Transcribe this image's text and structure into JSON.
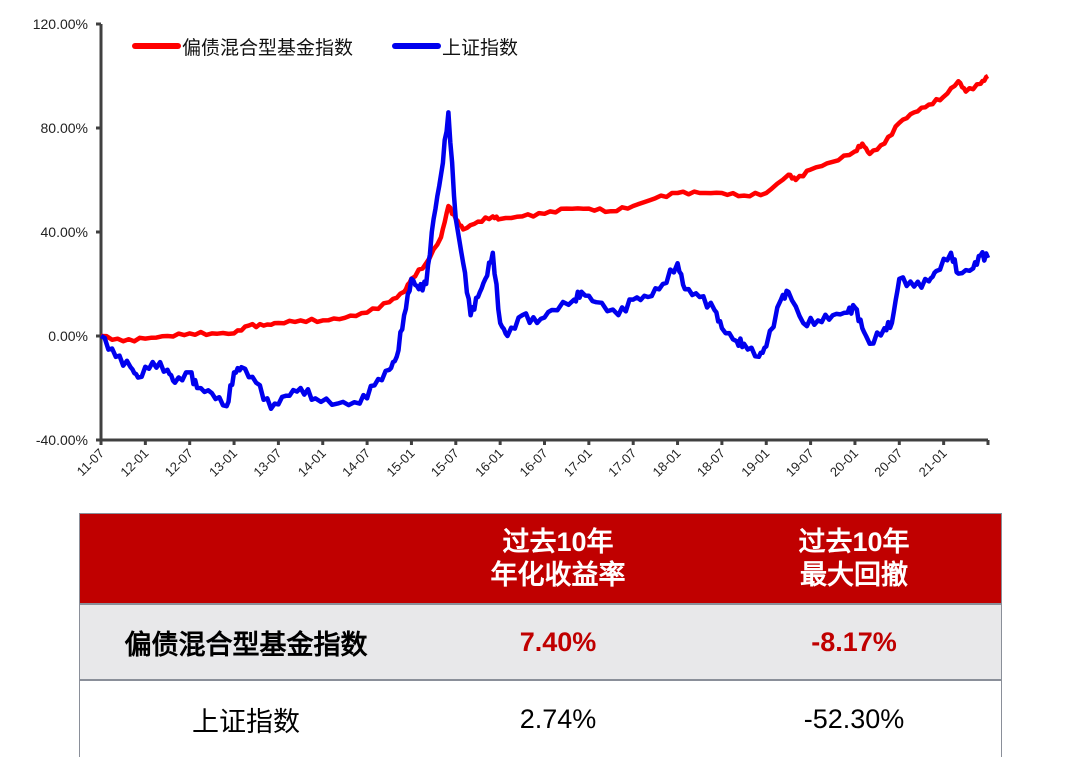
{
  "chart_data": {
    "type": "line",
    "ylim": [
      -40,
      120
    ],
    "yticks": [
      "120.00%",
      "80.00%",
      "40.00%",
      "0.00%",
      "-40.00%"
    ],
    "ytick_values": [
      120,
      80,
      40,
      0,
      -40
    ],
    "xlim": [
      "2011-07",
      "2021-07"
    ],
    "xtick_labels": [
      "11-07",
      "12-01",
      "12-07",
      "13-01",
      "13-07",
      "14-01",
      "14-07",
      "15-01",
      "15-07",
      "16-01",
      "16-07",
      "17-01",
      "17-07",
      "18-01",
      "18-07",
      "19-01",
      "19-07",
      "20-01",
      "20-07",
      "21-01"
    ],
    "legend_position": "top-left",
    "grid": false,
    "series": [
      {
        "name": "偏债混合型基金指数",
        "color": "#ff0000",
        "points": [
          [
            "2011-07",
            0
          ],
          [
            "2011-10",
            -2
          ],
          [
            "2012-01",
            -1
          ],
          [
            "2012-04",
            0
          ],
          [
            "2012-07",
            1
          ],
          [
            "2012-10",
            1
          ],
          [
            "2013-01",
            1
          ],
          [
            "2013-03",
            4
          ],
          [
            "2013-05",
            4
          ],
          [
            "2013-07",
            5
          ],
          [
            "2013-10",
            6
          ],
          [
            "2014-01",
            6
          ],
          [
            "2014-04",
            7
          ],
          [
            "2014-07",
            9
          ],
          [
            "2014-10",
            13
          ],
          [
            "2014-12",
            17
          ],
          [
            "2015-01",
            22
          ],
          [
            "2015-03",
            28
          ],
          [
            "2015-05",
            38
          ],
          [
            "2015-06",
            50
          ],
          [
            "2015-07",
            45
          ],
          [
            "2015-08",
            41
          ],
          [
            "2015-10",
            44
          ],
          [
            "2015-12",
            46
          ],
          [
            "2016-01",
            45
          ],
          [
            "2016-04",
            46
          ],
          [
            "2016-07",
            47
          ],
          [
            "2016-10",
            49
          ],
          [
            "2017-01",
            49
          ],
          [
            "2017-04",
            48
          ],
          [
            "2017-07",
            50
          ],
          [
            "2017-10",
            53
          ],
          [
            "2018-01",
            55
          ],
          [
            "2018-04",
            55
          ],
          [
            "2018-07",
            55
          ],
          [
            "2018-10",
            54
          ],
          [
            "2019-01",
            55
          ],
          [
            "2019-04",
            62
          ],
          [
            "2019-05",
            60
          ],
          [
            "2019-07",
            64
          ],
          [
            "2019-10",
            67
          ],
          [
            "2020-01",
            71
          ],
          [
            "2020-02",
            74
          ],
          [
            "2020-03",
            70
          ],
          [
            "2020-05",
            74
          ],
          [
            "2020-07",
            82
          ],
          [
            "2020-09",
            86
          ],
          [
            "2020-11",
            89
          ],
          [
            "2021-01",
            92
          ],
          [
            "2021-03",
            98
          ],
          [
            "2021-04",
            94
          ],
          [
            "2021-06",
            97
          ],
          [
            "2021-07",
            100
          ]
        ]
      },
      {
        "name": "上证指数",
        "color": "#0000ee",
        "points": [
          [
            "2011-07",
            0
          ],
          [
            "2011-09",
            -8
          ],
          [
            "2011-11",
            -12
          ],
          [
            "2011-12",
            -16
          ],
          [
            "2012-02",
            -10
          ],
          [
            "2012-04",
            -13
          ],
          [
            "2012-05",
            -18
          ],
          [
            "2012-07",
            -14
          ],
          [
            "2012-08",
            -20
          ],
          [
            "2012-10",
            -22
          ],
          [
            "2012-12",
            -27
          ],
          [
            "2013-01",
            -14
          ],
          [
            "2013-02",
            -12
          ],
          [
            "2013-04",
            -18
          ],
          [
            "2013-06",
            -28
          ],
          [
            "2013-08",
            -23
          ],
          [
            "2013-10",
            -20
          ],
          [
            "2013-12",
            -24
          ],
          [
            "2014-03",
            -26
          ],
          [
            "2014-06",
            -26
          ],
          [
            "2014-08",
            -19
          ],
          [
            "2014-10",
            -13
          ],
          [
            "2014-11",
            -8
          ],
          [
            "2014-12",
            8
          ],
          [
            "2015-01",
            22
          ],
          [
            "2015-02",
            18
          ],
          [
            "2015-03",
            20
          ],
          [
            "2015-04",
            45
          ],
          [
            "2015-05",
            62
          ],
          [
            "2015-06",
            86
          ],
          [
            "2015-07",
            45
          ],
          [
            "2015-08",
            28
          ],
          [
            "2015-09",
            8
          ],
          [
            "2015-10",
            15
          ],
          [
            "2015-11",
            22
          ],
          [
            "2015-12",
            32
          ],
          [
            "2016-01",
            5
          ],
          [
            "2016-02",
            0
          ],
          [
            "2016-04",
            8
          ],
          [
            "2016-06",
            5
          ],
          [
            "2016-08",
            10
          ],
          [
            "2016-11",
            14
          ],
          [
            "2016-12",
            17
          ],
          [
            "2017-02",
            13
          ],
          [
            "2017-05",
            8
          ],
          [
            "2017-07",
            14
          ],
          [
            "2017-09",
            15
          ],
          [
            "2017-11",
            20
          ],
          [
            "2018-01",
            28
          ],
          [
            "2018-02",
            18
          ],
          [
            "2018-04",
            15
          ],
          [
            "2018-06",
            10
          ],
          [
            "2018-07",
            3
          ],
          [
            "2018-09",
            -2
          ],
          [
            "2018-10",
            -3
          ],
          [
            "2018-12",
            -8
          ],
          [
            "2019-01",
            -4
          ],
          [
            "2019-03",
            14
          ],
          [
            "2019-04",
            17
          ],
          [
            "2019-06",
            5
          ],
          [
            "2019-08",
            6
          ],
          [
            "2019-10",
            8
          ],
          [
            "2019-12",
            9
          ],
          [
            "2020-01",
            11
          ],
          [
            "2020-02",
            3
          ],
          [
            "2020-03",
            -3
          ],
          [
            "2020-05",
            3
          ],
          [
            "2020-06",
            5
          ],
          [
            "2020-07",
            22
          ],
          [
            "2020-09",
            19
          ],
          [
            "2020-11",
            21
          ],
          [
            "2020-12",
            25
          ],
          [
            "2021-02",
            32
          ],
          [
            "2021-03",
            24
          ],
          [
            "2021-05",
            26
          ],
          [
            "2021-06",
            31
          ],
          [
            "2021-07",
            30
          ]
        ]
      }
    ]
  },
  "table": {
    "headers": [
      "",
      "过去10年\n年化收益率",
      "过去10年\n最大回撤"
    ],
    "header_lines": [
      [
        "过去10年",
        "年化收益率"
      ],
      [
        "过去10年",
        "最大回撤"
      ]
    ],
    "rows": [
      {
        "name": "偏债混合型基金指数",
        "annual_return": "7.40%",
        "max_drawdown": "-8.17%"
      },
      {
        "name": "上证指数",
        "annual_return": "2.74%",
        "max_drawdown": "-52.30%"
      }
    ],
    "header_color": "#c00000",
    "highlight_color": "#c00000"
  }
}
